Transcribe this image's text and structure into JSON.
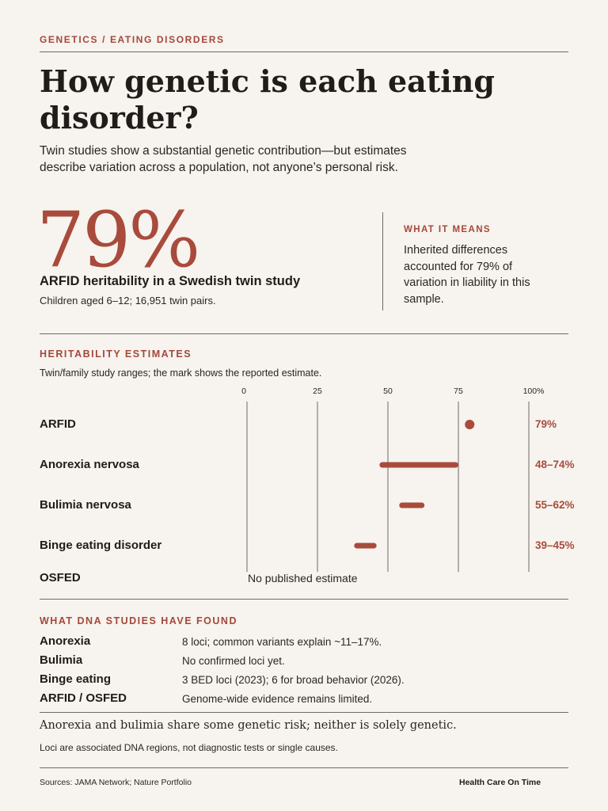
{
  "header": {
    "kicker": "GENETICS / EATING DISORDERS",
    "title": "How genetic is each eating disorder?",
    "dek": "Twin studies show a substantial genetic contribution—but estimates describe variation across a population, not anyone’s personal risk."
  },
  "highlight": {
    "value": "79%",
    "label": "ARFID heritability in a Swedish twin study",
    "sub": "Children aged 6–12; 16,951 twin pairs.",
    "means_kicker": "WHAT IT MEANS",
    "means_text": "Inherited differences accounted for 79% of variation in liability in this sample."
  },
  "heritability": {
    "kicker": "HERITABILITY ESTIMATES",
    "note": "Twin/family study ranges; the mark shows the reported estimate.",
    "no_estimate_text": "No published estimate"
  },
  "chart_data": {
    "type": "range",
    "title": "",
    "xlim": [
      0,
      100
    ],
    "ticks": [
      0,
      25,
      50,
      75,
      100
    ],
    "tick_labels": [
      "0",
      "25",
      "50",
      "75",
      "100%"
    ],
    "accent": "#a84b3c",
    "rows": [
      {
        "name": "ARFID",
        "low": 79,
        "high": 79,
        "label": "79%"
      },
      {
        "name": "Anorexia nervosa",
        "low": 48,
        "high": 74,
        "label": "48–74%"
      },
      {
        "name": "Bulimia nervosa",
        "low": 55,
        "high": 62,
        "label": "55–62%"
      },
      {
        "name": "Binge eating disorder",
        "low": 39,
        "high": 45,
        "label": "39–45%"
      },
      {
        "name": "OSFED",
        "low": null,
        "high": null,
        "label": ""
      }
    ]
  },
  "dna": {
    "kicker": "WHAT DNA STUDIES HAVE FOUND",
    "rows": [
      {
        "name": "Anorexia",
        "text": "8 loci; common variants explain ~11–17%."
      },
      {
        "name": "Bulimia",
        "text": "No confirmed loci yet."
      },
      {
        "name": "Binge eating",
        "text": "3 BED loci (2023); 6 for broad behavior (2026)."
      },
      {
        "name": "ARFID / OSFED",
        "text": "Genome-wide evidence remains limited."
      }
    ]
  },
  "footer": {
    "closing": "Anorexia and bulimia share some genetic risk; neither is solely genetic.",
    "loci_note": "Loci are associated DNA regions, not diagnostic tests or single causes.",
    "sources": "Sources: JAMA Network; Nature Portfolio",
    "brand": "Health Care On Time"
  }
}
